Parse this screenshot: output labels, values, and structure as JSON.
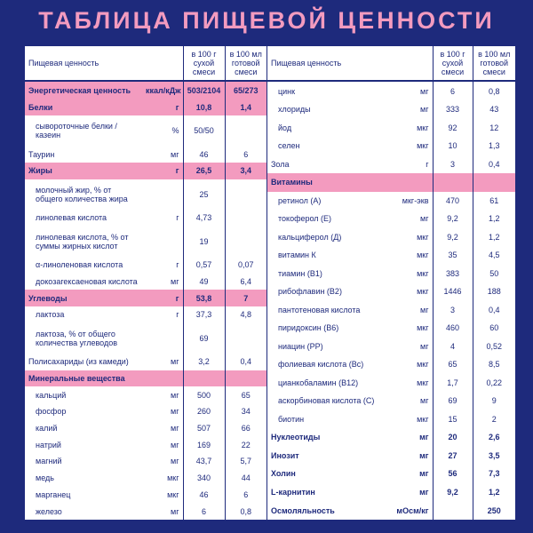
{
  "title": "ТАБЛИЦА ПИЩЕВОЙ ЦЕННОСТИ",
  "tables": [
    {
      "header": [
        "Пищевая ценность",
        "в 100 г сухой смеси",
        "в 100 мл готовой смеси"
      ],
      "rows": [
        {
          "name": "Энергетическая ценность",
          "unit": "ккал/кДж",
          "v100g": "503/2104",
          "v100ml": "65/273",
          "style": "section"
        },
        {
          "name": "Белки",
          "unit": "г",
          "v100g": "10,8",
          "v100ml": "1,4",
          "style": "section"
        },
        {
          "name": "сывороточные белки / казеин",
          "unit": "%",
          "v100g": "50/50",
          "v100ml": null,
          "style": "sub"
        },
        {
          "name": "Таурин",
          "unit": "мг",
          "v100g": "46",
          "v100ml": "6",
          "style": "main"
        },
        {
          "name": "Жиры",
          "unit": "г",
          "v100g": "26,5",
          "v100ml": "3,4",
          "style": "section"
        },
        {
          "name": "молочный жир, % от общего количества жира",
          "unit": null,
          "v100g": "25",
          "v100ml": null,
          "style": "sub"
        },
        {
          "name": "линолевая кислота",
          "unit": "г",
          "v100g": "4,73",
          "v100ml": null,
          "style": "sub"
        },
        {
          "name": "линолевая кислота, % от суммы жирных кислот",
          "unit": null,
          "v100g": "19",
          "v100ml": null,
          "style": "sub"
        },
        {
          "name": "α-линоленовая кислота",
          "unit": "г",
          "v100g": "0,57",
          "v100ml": "0,07",
          "style": "sub"
        },
        {
          "name": "докозагексаеновая кислота",
          "unit": "мг",
          "v100g": "49",
          "v100ml": "6,4",
          "style": "sub"
        },
        {
          "name": "Углеводы",
          "unit": "г",
          "v100g": "53,8",
          "v100ml": "7",
          "style": "section"
        },
        {
          "name": "лактоза",
          "unit": "г",
          "v100g": "37,3",
          "v100ml": "4,8",
          "style": "sub"
        },
        {
          "name": "лактоза, % от общего количества углеводов",
          "unit": null,
          "v100g": "69",
          "v100ml": null,
          "style": "sub"
        },
        {
          "name": "Полисахариды (из камеди)",
          "unit": "мг",
          "v100g": "3,2",
          "v100ml": "0,4",
          "style": "main"
        },
        {
          "name": "Минеральные вещества",
          "unit": null,
          "v100g": null,
          "v100ml": null,
          "style": "section"
        },
        {
          "name": "кальций",
          "unit": "мг",
          "v100g": "500",
          "v100ml": "65",
          "style": "sub"
        },
        {
          "name": "фосфор",
          "unit": "мг",
          "v100g": "260",
          "v100ml": "34",
          "style": "sub"
        },
        {
          "name": "калий",
          "unit": "мг",
          "v100g": "507",
          "v100ml": "66",
          "style": "sub"
        },
        {
          "name": "натрий",
          "unit": "мг",
          "v100g": "169",
          "v100ml": "22",
          "style": "sub"
        },
        {
          "name": "магний",
          "unit": "мг",
          "v100g": "43,7",
          "v100ml": "5,7",
          "style": "sub"
        },
        {
          "name": "медь",
          "unit": "мкг",
          "v100g": "340",
          "v100ml": "44",
          "style": "sub"
        },
        {
          "name": "марганец",
          "unit": "мкг",
          "v100g": "46",
          "v100ml": "6",
          "style": "sub"
        },
        {
          "name": "железо",
          "unit": "мг",
          "v100g": "6",
          "v100ml": "0,8",
          "style": "sub"
        }
      ]
    },
    {
      "header": [
        "Пищевая ценность",
        "в 100 г сухой смеси",
        "в 100 мл готовой смеси"
      ],
      "rows": [
        {
          "name": "цинк",
          "unit": "мг",
          "v100g": "6",
          "v100ml": "0,8",
          "style": "sub"
        },
        {
          "name": "хлориды",
          "unit": "мг",
          "v100g": "333",
          "v100ml": "43",
          "style": "sub"
        },
        {
          "name": "йод",
          "unit": "мкг",
          "v100g": "92",
          "v100ml": "12",
          "style": "sub"
        },
        {
          "name": "селен",
          "unit": "мкг",
          "v100g": "10",
          "v100ml": "1,3",
          "style": "sub"
        },
        {
          "name": "Зола",
          "unit": "г",
          "v100g": "3",
          "v100ml": "0,4",
          "style": "main"
        },
        {
          "name": "Витамины",
          "unit": null,
          "v100g": null,
          "v100ml": null,
          "style": "section"
        },
        {
          "name": "ретинол (А)",
          "unit": "мкг-экв",
          "v100g": "470",
          "v100ml": "61",
          "style": "sub"
        },
        {
          "name": "токоферол (Е)",
          "unit": "мг",
          "v100g": "9,2",
          "v100ml": "1,2",
          "style": "sub"
        },
        {
          "name": "кальциферол (Д)",
          "unit": "мкг",
          "v100g": "9,2",
          "v100ml": "1,2",
          "style": "sub"
        },
        {
          "name": "витамин К",
          "unit": "мкг",
          "v100g": "35",
          "v100ml": "4,5",
          "style": "sub"
        },
        {
          "name": "тиамин (В1)",
          "unit": "мкг",
          "v100g": "383",
          "v100ml": "50",
          "style": "sub"
        },
        {
          "name": "рибофлавин (В2)",
          "unit": "мкг",
          "v100g": "1446",
          "v100ml": "188",
          "style": "sub"
        },
        {
          "name": "пантотеновая кислота",
          "unit": "мг",
          "v100g": "3",
          "v100ml": "0,4",
          "style": "sub"
        },
        {
          "name": "пиридоксин (В6)",
          "unit": "мкг",
          "v100g": "460",
          "v100ml": "60",
          "style": "sub"
        },
        {
          "name": "ниацин (РР)",
          "unit": "мг",
          "v100g": "4",
          "v100ml": "0,52",
          "style": "sub"
        },
        {
          "name": "фолиевая кислота (Вс)",
          "unit": "мкг",
          "v100g": "65",
          "v100ml": "8,5",
          "style": "sub"
        },
        {
          "name": "цианкобаламин (В12)",
          "unit": "мкг",
          "v100g": "1,7",
          "v100ml": "0,22",
          "style": "sub"
        },
        {
          "name": "аскорбиновая кислота (С)",
          "unit": "мг",
          "v100g": "69",
          "v100ml": "9",
          "style": "sub"
        },
        {
          "name": "биотин",
          "unit": "мкг",
          "v100g": "15",
          "v100ml": "2",
          "style": "sub"
        },
        {
          "name": "Нуклеотиды",
          "unit": "мг",
          "v100g": "20",
          "v100ml": "2,6",
          "style": "bold"
        },
        {
          "name": "Инозит",
          "unit": "мг",
          "v100g": "27",
          "v100ml": "3,5",
          "style": "bold"
        },
        {
          "name": "Холин",
          "unit": "мг",
          "v100g": "56",
          "v100ml": "7,3",
          "style": "bold"
        },
        {
          "name": "L-карнитин",
          "unit": "мг",
          "v100g": "9,2",
          "v100ml": "1,2",
          "style": "bold"
        },
        {
          "name": "Осмоляльность",
          "unit": "мОсм/кг",
          "v100g": null,
          "v100ml": "250",
          "style": "bold"
        }
      ]
    }
  ]
}
